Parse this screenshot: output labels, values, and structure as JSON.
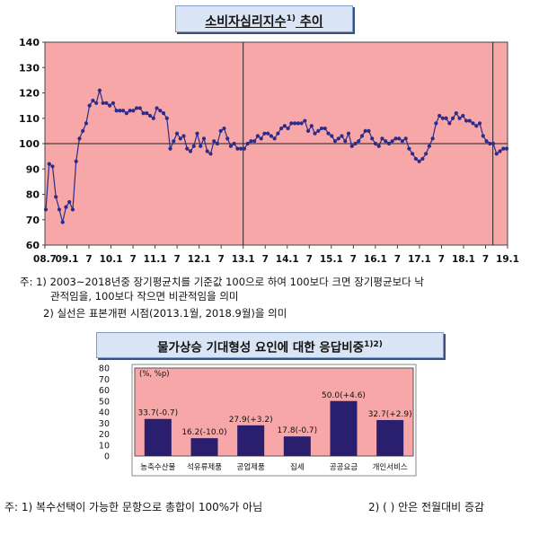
{
  "top": {
    "title": "소비자심리지수",
    "title_sup": "1)",
    "title_suffix": " 추이",
    "notes": [
      "주: 1) 2003~2018년중 장기평균치를 기준값 100으로 하여 100보다 크면 장기평균보다 낙",
      "관적임을, 100보다 작으면 비관적임을 의미",
      "2) 실선은 표본개편 시점(2013.1월, 2018.9월)을 의미"
    ]
  },
  "bottom": {
    "title": "물가상승 기대형성 요인에 대한 응답비중",
    "title_sup": "1)2)",
    "unit_label": "(%, %p)",
    "notes_left": "주: 1) 복수선택이 가능한 문항으로 총합이 100%가 아님",
    "notes_right": "2) ( ) 안은 전월대비 증감"
  },
  "colors": {
    "plot_bg": "#f7a7a7",
    "line": "#2b2b8a",
    "bar": "#2a1f6e",
    "title_bg": "#d9e4f5"
  },
  "chart_data": [
    {
      "type": "line",
      "title": "소비자심리지수 추이",
      "x_tick_labels": [
        "08.7",
        "09.1",
        "7",
        "10.1",
        "7",
        "11.1",
        "7",
        "12.1",
        "7",
        "13.1",
        "7",
        "14.1",
        "7",
        "15.1",
        "7",
        "16.1",
        "7",
        "17.1",
        "7",
        "18.1",
        "7",
        "19.1"
      ],
      "ylim": [
        60,
        140
      ],
      "y_ticks": [
        60,
        70,
        80,
        90,
        100,
        110,
        120,
        130,
        140
      ],
      "reference_line": 100,
      "vertical_lines": [
        "2013.1",
        "2018.9"
      ],
      "grid": false,
      "start": "2008.7",
      "end": "2019.1",
      "values": [
        74,
        92,
        91,
        79,
        74,
        69,
        75,
        77,
        74,
        93,
        102,
        105,
        108,
        115,
        117,
        116,
        121,
        116,
        116,
        115,
        116,
        113,
        113,
        113,
        112,
        113,
        113,
        114,
        114,
        112,
        112,
        111,
        110,
        114,
        113,
        112,
        110,
        98,
        101,
        104,
        102,
        103,
        98,
        97,
        99,
        104,
        99,
        102,
        97,
        96,
        101,
        100,
        105,
        106,
        102,
        99,
        100,
        98,
        98,
        98,
        100,
        101,
        101,
        103,
        102,
        104,
        104,
        103,
        102,
        104,
        106,
        107,
        106,
        108,
        108,
        108,
        108,
        109,
        105,
        107,
        104,
        105,
        106,
        106,
        104,
        103,
        101,
        102,
        103,
        101,
        104,
        99,
        100,
        101,
        103,
        105,
        105,
        102,
        100,
        99,
        102,
        101,
        100,
        101,
        102,
        102,
        101,
        102,
        98,
        96,
        94,
        93,
        94,
        96,
        99,
        102,
        108,
        111,
        110,
        110,
        108,
        110,
        112,
        110,
        111,
        109,
        109,
        108,
        107,
        108,
        103,
        101,
        100,
        100,
        96,
        97,
        98,
        98
      ]
    },
    {
      "type": "bar",
      "title": "물가상승 기대형성 요인에 대한 응답비중",
      "ylabel": "(%, %p)",
      "ylim": [
        0,
        80
      ],
      "y_ticks": [
        0,
        10,
        20,
        30,
        40,
        50,
        60,
        70,
        80
      ],
      "categories": [
        "농축수산물",
        "석유류제품",
        "공업제품",
        "집세",
        "공공요금",
        "개인서비스"
      ],
      "values": [
        33.7,
        16.2,
        27.9,
        17.8,
        50.0,
        32.7
      ],
      "data_labels": [
        "33.7(-0.7)",
        "16.2(-10.0)",
        "27.9(+3.2)",
        "17.8(-0.7)",
        "50.0(+4.6)",
        "32.7(+2.9)"
      ],
      "grid": false
    }
  ]
}
